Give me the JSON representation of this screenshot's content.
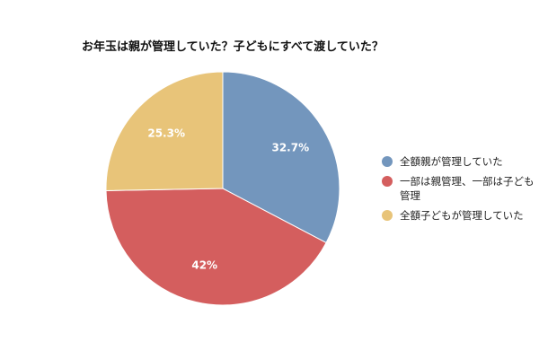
{
  "chart_data": {
    "type": "pie",
    "title": "お年玉は親が管理していた？子どもにすべて渡していた？",
    "slices": [
      {
        "name": "全額親が管理していた",
        "value": 32.7,
        "label": "32.7%",
        "color": "#7396bd"
      },
      {
        "name": "一部は親管理、一部は子ども管理",
        "value": 42,
        "label": "42%",
        "color": "#d45e5e"
      },
      {
        "name": "全額子どもが管理していた",
        "value": 25.3,
        "label": "25.3%",
        "color": "#e8c479"
      }
    ],
    "legend_position": "right"
  }
}
